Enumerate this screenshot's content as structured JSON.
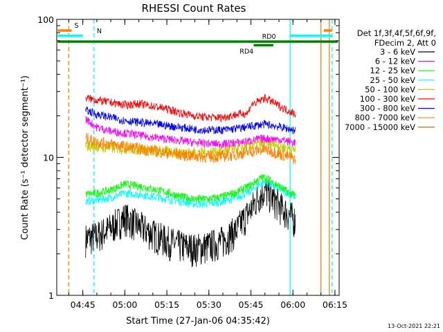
{
  "chart_data": {
    "type": "line",
    "title": "RHESSI Count Rates",
    "xlabel": "Start Time (27-Jan-06 04:35:42)",
    "ylabel": "Count Rate (s⁻¹ detector segment⁻¹)",
    "y_scale": "log",
    "ylim": [
      1,
      100
    ],
    "xlim": [
      "04:35:42",
      "06:16:30"
    ],
    "x_ticks": [
      "04:45",
      "05:00",
      "05:15",
      "05:30",
      "05:45",
      "06:00",
      "06:15"
    ],
    "y_ticks": [
      "1",
      "10",
      "100"
    ],
    "grid": false,
    "legend_title": [
      "Det 1f,3f,4f,5f,6f,9f,",
      "FDecim 2, Att 0"
    ],
    "legend_position": "right",
    "x_unit": "time of day (hh:mm)",
    "series": [
      {
        "name": "3 - 6 keV",
        "color": "#000000",
        "points": [
          [
            "04:46",
            2.6
          ],
          [
            "04:50",
            2.7
          ],
          [
            "04:55",
            3.1
          ],
          [
            "05:00",
            3.7
          ],
          [
            "05:05",
            3.2
          ],
          [
            "05:10",
            2.8
          ],
          [
            "05:15",
            2.5
          ],
          [
            "05:20",
            2.3
          ],
          [
            "05:25",
            2.2
          ],
          [
            "05:30",
            2.3
          ],
          [
            "05:35",
            2.5
          ],
          [
            "05:40",
            3.0
          ],
          [
            "05:45",
            4.2
          ],
          [
            "05:48",
            5.3
          ],
          [
            "05:50",
            5.8
          ],
          [
            "05:53",
            5.0
          ],
          [
            "05:56",
            4.3
          ],
          [
            "05:59",
            3.8
          ],
          [
            "06:01",
            3.5
          ]
        ]
      },
      {
        "name": "6 - 12 keV",
        "color": "#ff00ff",
        "points": [
          [
            "04:46",
            19.0
          ],
          [
            "04:50",
            16.5
          ],
          [
            "04:55",
            15.5
          ],
          [
            "05:00",
            15.0
          ],
          [
            "05:05",
            14.5
          ],
          [
            "05:10",
            14.0
          ],
          [
            "05:15",
            13.6
          ],
          [
            "05:20",
            13.2
          ],
          [
            "05:25",
            12.8
          ],
          [
            "05:30",
            12.6
          ],
          [
            "05:35",
            12.5
          ],
          [
            "05:40",
            12.8
          ],
          [
            "05:45",
            13.2
          ],
          [
            "05:48",
            13.6
          ],
          [
            "05:50",
            13.7
          ],
          [
            "05:53",
            13.6
          ],
          [
            "05:56",
            13.4
          ],
          [
            "05:59",
            13.0
          ],
          [
            "06:01",
            12.8
          ]
        ]
      },
      {
        "name": "12 - 25 keV",
        "color": "#00ff00",
        "points": [
          [
            "04:46",
            5.4
          ],
          [
            "04:50",
            5.5
          ],
          [
            "04:55",
            5.8
          ],
          [
            "05:00",
            6.4
          ],
          [
            "05:05",
            6.2
          ],
          [
            "05:10",
            5.9
          ],
          [
            "05:15",
            5.6
          ],
          [
            "05:20",
            5.2
          ],
          [
            "05:25",
            5.0
          ],
          [
            "05:30",
            5.0
          ],
          [
            "05:35",
            5.2
          ],
          [
            "05:40",
            5.6
          ],
          [
            "05:45",
            6.3
          ],
          [
            "05:48",
            7.0
          ],
          [
            "05:50",
            7.2
          ],
          [
            "05:53",
            6.6
          ],
          [
            "05:56",
            6.0
          ],
          [
            "05:59",
            5.5
          ],
          [
            "06:01",
            5.3
          ]
        ]
      },
      {
        "name": "25 - 50 keV",
        "color": "#00ffff",
        "points": [
          [
            "04:46",
            4.8
          ],
          [
            "04:50",
            4.9
          ],
          [
            "04:55",
            5.1
          ],
          [
            "05:00",
            5.5
          ],
          [
            "05:05",
            5.4
          ],
          [
            "05:10",
            5.2
          ],
          [
            "05:15",
            5.0
          ],
          [
            "05:20",
            4.8
          ],
          [
            "05:25",
            4.6
          ],
          [
            "05:30",
            4.6
          ],
          [
            "05:35",
            4.8
          ],
          [
            "05:40",
            5.1
          ],
          [
            "05:45",
            5.7
          ],
          [
            "05:48",
            6.4
          ],
          [
            "05:50",
            6.6
          ],
          [
            "05:53",
            6.2
          ],
          [
            "05:56",
            5.8
          ],
          [
            "05:59",
            5.4
          ],
          [
            "06:01",
            5.2
          ]
        ]
      },
      {
        "name": "50 - 100 keV",
        "color": "#c8c800",
        "points": [
          [
            "04:46",
            12.2
          ],
          [
            "04:50",
            12.0
          ],
          [
            "04:55",
            11.8
          ],
          [
            "05:00",
            11.7
          ],
          [
            "05:05",
            11.5
          ],
          [
            "05:10",
            11.2
          ],
          [
            "05:15",
            11.0
          ],
          [
            "05:20",
            10.8
          ],
          [
            "05:25",
            10.8
          ],
          [
            "05:30",
            10.9
          ],
          [
            "05:35",
            11.2
          ],
          [
            "05:40",
            11.6
          ],
          [
            "05:45",
            12.0
          ],
          [
            "05:48",
            12.5
          ],
          [
            "05:50",
            12.7
          ],
          [
            "05:53",
            12.5
          ],
          [
            "05:56",
            12.0
          ],
          [
            "05:59",
            11.6
          ],
          [
            "06:01",
            11.3
          ]
        ]
      },
      {
        "name": "100 - 300 keV",
        "color": "#ff0000",
        "points": [
          [
            "04:46",
            27.0
          ],
          [
            "04:50",
            26.0
          ],
          [
            "04:55",
            25.0
          ],
          [
            "05:00",
            24.0
          ],
          [
            "05:05",
            24.5
          ],
          [
            "05:10",
            23.5
          ],
          [
            "05:15",
            22.5
          ],
          [
            "05:20",
            21.0
          ],
          [
            "05:25",
            20.0
          ],
          [
            "05:30",
            19.5
          ],
          [
            "05:35",
            19.5
          ],
          [
            "05:40",
            20.5
          ],
          [
            "05:44",
            21.0
          ],
          [
            "05:45",
            24.0
          ],
          [
            "05:48",
            25.5
          ],
          [
            "05:50",
            27.0
          ],
          [
            "05:53",
            25.0
          ],
          [
            "05:56",
            23.0
          ],
          [
            "05:59",
            21.5
          ],
          [
            "06:01",
            20.5
          ]
        ]
      },
      {
        "name": "300 - 800 keV",
        "color": "#0000ff",
        "points": [
          [
            "04:46",
            22.0
          ],
          [
            "04:50",
            20.5
          ],
          [
            "04:55",
            19.5
          ],
          [
            "05:00",
            18.5
          ],
          [
            "05:05",
            18.0
          ],
          [
            "05:10",
            17.5
          ],
          [
            "05:15",
            17.0
          ],
          [
            "05:20",
            16.5
          ],
          [
            "05:25",
            16.0
          ],
          [
            "05:30",
            15.8
          ],
          [
            "05:35",
            15.8
          ],
          [
            "05:40",
            16.2
          ],
          [
            "05:45",
            16.8
          ],
          [
            "05:48",
            17.2
          ],
          [
            "05:50",
            17.4
          ],
          [
            "05:53",
            17.0
          ],
          [
            "05:56",
            16.5
          ],
          [
            "05:59",
            16.0
          ],
          [
            "06:01",
            15.6
          ]
        ]
      },
      {
        "name": "800 - 7000 keV",
        "color": "#ff8000",
        "points": [
          [
            "04:46",
            13.8
          ],
          [
            "04:50",
            13.0
          ],
          [
            "04:55",
            12.5
          ],
          [
            "05:00",
            12.0
          ],
          [
            "05:05",
            11.6
          ],
          [
            "05:10",
            11.2
          ],
          [
            "05:15",
            10.8
          ],
          [
            "05:20",
            10.5
          ],
          [
            "05:25",
            10.2
          ],
          [
            "05:30",
            10.1
          ],
          [
            "05:35",
            10.2
          ],
          [
            "05:40",
            10.5
          ],
          [
            "05:45",
            11.0
          ],
          [
            "05:48",
            11.3
          ],
          [
            "05:50",
            11.4
          ],
          [
            "05:53",
            11.0
          ],
          [
            "05:56",
            10.5
          ],
          [
            "05:59",
            10.0
          ],
          [
            "06:01",
            9.7
          ]
        ]
      },
      {
        "name": "7000 - 15000 keV",
        "color": "#a06000",
        "points": []
      }
    ],
    "state_bars": [
      {
        "label": "S",
        "color": "#ff8000",
        "segments": [
          [
            "04:36",
            "04:41"
          ],
          [
            "06:11",
            "06:14"
          ]
        ],
        "level": 83
      },
      {
        "label": "N",
        "color": "#00ffff",
        "segments": [
          [
            "04:36",
            "04:45"
          ],
          [
            "05:59",
            "06:14"
          ]
        ],
        "level": 76
      },
      {
        "label": "RD0",
        "color": "#008000",
        "segments": [
          [
            "04:36",
            "06:16"
          ]
        ],
        "level": 69
      },
      {
        "label": "RD4",
        "color": "#008000",
        "segments": [
          [
            "05:46",
            "05:53"
          ]
        ],
        "level": 65
      }
    ],
    "vertical_markers": [
      {
        "time": "04:40",
        "color": "#ff8000",
        "style": "dashed"
      },
      {
        "time": "04:49",
        "color": "#00ffff",
        "style": "dashed"
      },
      {
        "time": "05:59",
        "color": "#00ffff",
        "style": "solid"
      },
      {
        "time": "06:10",
        "color": "#ff8000",
        "style": "solid"
      },
      {
        "time": "06:13",
        "color": "#ff8000",
        "style": "solid"
      },
      {
        "time": "06:14",
        "color": "#00ffff",
        "style": "dashed"
      }
    ],
    "footer_stamp": "13-Oct-2021 22:21"
  }
}
